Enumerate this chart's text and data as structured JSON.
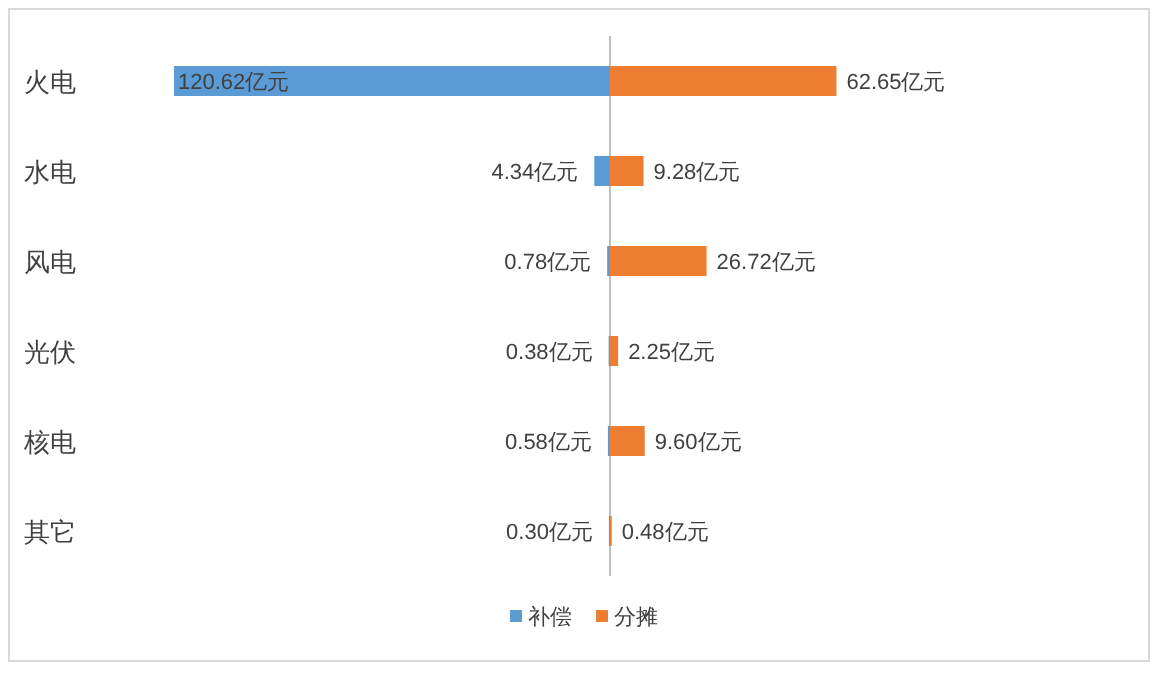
{
  "chart_data": [
    {
      "type": "bar",
      "orientation": "horizontal",
      "legend": "bottom",
      "tick_labels": "y",
      "categories": [
        "火电",
        "水电",
        "风电",
        "光伏",
        "核电",
        "其它"
      ],
      "series": [
        {
          "name": "补偿",
          "color": "#5b9bd5",
          "values": [
            120.62,
            4.34,
            0.78,
            0.38,
            0.58,
            0.3
          ],
          "value_labels": [
            "120.62亿元",
            "4.34亿元",
            "0.78亿元",
            "0.38亿元",
            "0.58亿元",
            "0.30亿元"
          ]
        }
      ]
    },
    {
      "type": "bar",
      "orientation": "horizontal",
      "legend": "bottom",
      "tick_labels": false,
      "series": [
        {
          "name": "分摊",
          "color": "#ed7d31",
          "values": [
            62.65,
            9.28,
            26.72,
            2.25,
            9.6,
            0.48
          ],
          "value_labels": [
            "62.65亿元",
            "9.28亿元",
            "26.72亿元",
            "2.25亿元",
            "9.60亿元",
            "0.48亿元"
          ]
        }
      ]
    }
  ]
}
